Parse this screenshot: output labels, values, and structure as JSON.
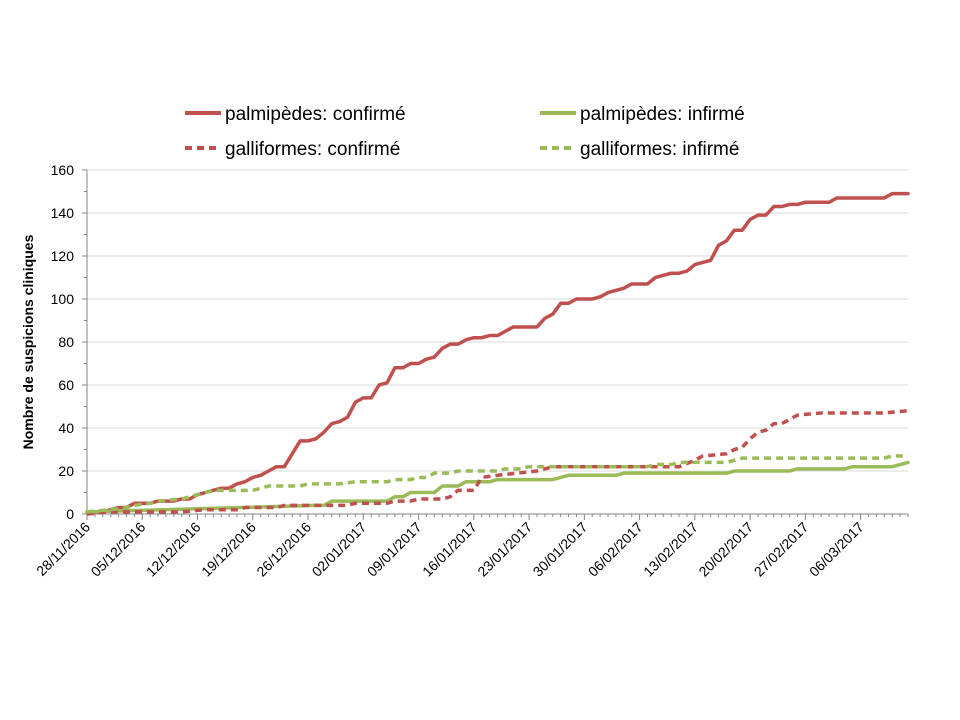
{
  "chart_data": {
    "type": "line",
    "title": "",
    "xlabel": "",
    "ylabel": "Nombre de suspicions cliniques",
    "ylim": [
      0,
      160
    ],
    "yticks": [
      "0",
      "20",
      "40",
      "60",
      "80",
      "100",
      "120",
      "140",
      "160"
    ],
    "xlim": [
      "2016-11-28",
      "2017-03-12"
    ],
    "x_tick_labels": [
      "28/11/2016",
      "05/12/2016",
      "12/12/2016",
      "19/12/2016",
      "26/12/2016",
      "02/01/2017",
      "09/01/2017",
      "16/01/2017",
      "23/01/2017",
      "30/01/2017",
      "06/02/2017",
      "13/02/2017",
      "20/02/2017",
      "27/02/2017",
      "06/03/2017"
    ],
    "grid": "horizontal major gridlines",
    "legend": "top, two columns",
    "series": [
      {
        "name": "palmipèdes: confirmé",
        "color": "#c0504d",
        "dash": "solid",
        "points": [
          [
            "2016-11-28",
            1
          ],
          [
            "2016-11-30",
            1
          ],
          [
            "2016-12-01",
            2
          ],
          [
            "2016-12-02",
            3
          ],
          [
            "2016-12-03",
            3
          ],
          [
            "2016-12-04",
            5
          ],
          [
            "2016-12-06",
            5
          ],
          [
            "2016-12-07",
            6
          ],
          [
            "2016-12-09",
            6
          ],
          [
            "2016-12-10",
            7
          ],
          [
            "2016-12-11",
            7
          ],
          [
            "2016-12-12",
            9
          ],
          [
            "2016-12-14",
            11
          ],
          [
            "2016-12-15",
            12
          ],
          [
            "2016-12-16",
            12
          ],
          [
            "2016-12-17",
            14
          ],
          [
            "2016-12-18",
            15
          ],
          [
            "2016-12-19",
            17
          ],
          [
            "2016-12-20",
            18
          ],
          [
            "2016-12-21",
            20
          ],
          [
            "2016-12-22",
            22
          ],
          [
            "2016-12-23",
            22
          ],
          [
            "2016-12-25",
            34
          ],
          [
            "2016-12-26",
            34
          ],
          [
            "2016-12-27",
            35
          ],
          [
            "2016-12-28",
            38
          ],
          [
            "2016-12-29",
            42
          ],
          [
            "2016-12-30",
            43
          ],
          [
            "2016-12-31",
            45
          ],
          [
            "2017-01-01",
            52
          ],
          [
            "2017-01-02",
            54
          ],
          [
            "2017-01-03",
            54
          ],
          [
            "2017-01-04",
            60
          ],
          [
            "2017-01-05",
            61
          ],
          [
            "2017-01-06",
            68
          ],
          [
            "2017-01-07",
            68
          ],
          [
            "2017-01-08",
            70
          ],
          [
            "2017-01-09",
            70
          ],
          [
            "2017-01-10",
            72
          ],
          [
            "2017-01-11",
            73
          ],
          [
            "2017-01-12",
            77
          ],
          [
            "2017-01-13",
            79
          ],
          [
            "2017-01-14",
            79
          ],
          [
            "2017-01-15",
            81
          ],
          [
            "2017-01-16",
            82
          ],
          [
            "2017-01-17",
            82
          ],
          [
            "2017-01-18",
            83
          ],
          [
            "2017-01-19",
            83
          ],
          [
            "2017-01-20",
            85
          ],
          [
            "2017-01-21",
            87
          ],
          [
            "2017-01-22",
            87
          ],
          [
            "2017-01-24",
            87
          ],
          [
            "2017-01-25",
            91
          ],
          [
            "2017-01-26",
            93
          ],
          [
            "2017-01-27",
            98
          ],
          [
            "2017-01-28",
            98
          ],
          [
            "2017-01-29",
            100
          ],
          [
            "2017-01-31",
            100
          ],
          [
            "2017-02-01",
            101
          ],
          [
            "2017-02-02",
            103
          ],
          [
            "2017-02-03",
            104
          ],
          [
            "2017-02-04",
            105
          ],
          [
            "2017-02-05",
            107
          ],
          [
            "2017-02-07",
            107
          ],
          [
            "2017-02-08",
            110
          ],
          [
            "2017-02-09",
            111
          ],
          [
            "2017-02-10",
            112
          ],
          [
            "2017-02-11",
            112
          ],
          [
            "2017-02-12",
            113
          ],
          [
            "2017-02-13",
            116
          ],
          [
            "2017-02-14",
            117
          ],
          [
            "2017-02-15",
            118
          ],
          [
            "2017-02-16",
            125
          ],
          [
            "2017-02-17",
            127
          ],
          [
            "2017-02-18",
            132
          ],
          [
            "2017-02-19",
            132
          ],
          [
            "2017-02-20",
            137
          ],
          [
            "2017-02-21",
            139
          ],
          [
            "2017-02-22",
            139
          ],
          [
            "2017-02-23",
            143
          ],
          [
            "2017-02-24",
            143
          ],
          [
            "2017-02-25",
            144
          ],
          [
            "2017-02-26",
            144
          ],
          [
            "2017-02-27",
            145
          ],
          [
            "2017-03-02",
            145
          ],
          [
            "2017-03-03",
            147
          ],
          [
            "2017-03-09",
            147
          ],
          [
            "2017-03-10",
            149
          ],
          [
            "2017-03-12",
            149
          ]
        ]
      },
      {
        "name": "palmipèdes: infirmé",
        "color": "#9bbb59",
        "dash": "solid",
        "points": [
          [
            "2016-11-28",
            1
          ],
          [
            "2016-12-27",
            4
          ],
          [
            "2016-12-28",
            4
          ],
          [
            "2016-12-29",
            6
          ],
          [
            "2017-01-05",
            6
          ],
          [
            "2017-01-06",
            8
          ],
          [
            "2017-01-07",
            8
          ],
          [
            "2017-01-08",
            10
          ],
          [
            "2017-01-11",
            10
          ],
          [
            "2017-01-12",
            13
          ],
          [
            "2017-01-14",
            13
          ],
          [
            "2017-01-15",
            15
          ],
          [
            "2017-01-18",
            15
          ],
          [
            "2017-01-19",
            16
          ],
          [
            "2017-01-26",
            16
          ],
          [
            "2017-01-27",
            17
          ],
          [
            "2017-01-28",
            18
          ],
          [
            "2017-02-03",
            18
          ],
          [
            "2017-02-04",
            19
          ],
          [
            "2017-02-17",
            19
          ],
          [
            "2017-02-18",
            20
          ],
          [
            "2017-02-25",
            20
          ],
          [
            "2017-02-26",
            21
          ],
          [
            "2017-03-04",
            21
          ],
          [
            "2017-03-05",
            22
          ],
          [
            "2017-03-10",
            22
          ],
          [
            "2017-03-12",
            24
          ]
        ]
      },
      {
        "name": "galliformes: confirmé",
        "color": "#c0504d",
        "dash": "dashed",
        "points": [
          [
            "2016-11-28",
            0
          ],
          [
            "2016-12-01",
            1
          ],
          [
            "2016-12-10",
            1
          ],
          [
            "2016-12-13",
            2
          ],
          [
            "2016-12-17",
            2
          ],
          [
            "2016-12-18",
            3
          ],
          [
            "2016-12-22",
            3
          ],
          [
            "2016-12-23",
            4
          ],
          [
            "2016-12-31",
            4
          ],
          [
            "2017-01-01",
            5
          ],
          [
            "2017-01-05",
            5
          ],
          [
            "2017-01-06",
            6
          ],
          [
            "2017-01-08",
            6
          ],
          [
            "2017-01-09",
            7
          ],
          [
            "2017-01-12",
            7
          ],
          [
            "2017-01-13",
            8
          ],
          [
            "2017-01-14",
            11
          ],
          [
            "2017-01-16",
            11
          ],
          [
            "2017-01-17",
            17
          ],
          [
            "2017-01-19",
            18
          ],
          [
            "2017-01-24",
            20
          ],
          [
            "2017-01-26",
            22
          ],
          [
            "2017-02-11",
            22
          ],
          [
            "2017-02-13",
            25
          ],
          [
            "2017-02-14",
            27
          ],
          [
            "2017-02-17",
            28
          ],
          [
            "2017-02-18",
            30
          ],
          [
            "2017-02-19",
            31
          ],
          [
            "2017-02-20",
            35
          ],
          [
            "2017-02-21",
            38
          ],
          [
            "2017-02-22",
            39
          ],
          [
            "2017-02-23",
            42
          ],
          [
            "2017-02-24",
            42
          ],
          [
            "2017-02-25",
            44
          ],
          [
            "2017-02-26",
            46
          ],
          [
            "2017-03-01",
            47
          ],
          [
            "2017-03-09",
            47
          ],
          [
            "2017-03-12",
            48
          ]
        ]
      },
      {
        "name": "galliformes: infirmé",
        "color": "#9bbb59",
        "dash": "dashed",
        "points": [
          [
            "2016-11-28",
            1
          ],
          [
            "2016-12-01",
            2
          ],
          [
            "2016-12-03",
            3
          ],
          [
            "2016-12-04",
            4
          ],
          [
            "2016-12-06",
            5
          ],
          [
            "2016-12-07",
            6
          ],
          [
            "2016-12-10",
            7
          ],
          [
            "2016-12-11",
            8
          ],
          [
            "2016-12-12",
            9
          ],
          [
            "2016-12-13",
            10
          ],
          [
            "2016-12-14",
            11
          ],
          [
            "2016-12-19",
            11
          ],
          [
            "2016-12-21",
            13
          ],
          [
            "2016-12-25",
            13
          ],
          [
            "2016-12-26",
            14
          ],
          [
            "2016-12-30",
            14
          ],
          [
            "2017-01-01",
            15
          ],
          [
            "2017-01-05",
            15
          ],
          [
            "2017-01-06",
            16
          ],
          [
            "2017-01-08",
            16
          ],
          [
            "2017-01-09",
            17
          ],
          [
            "2017-01-10",
            17
          ],
          [
            "2017-01-11",
            19
          ],
          [
            "2017-01-13",
            19
          ],
          [
            "2017-01-14",
            20
          ],
          [
            "2017-01-19",
            20
          ],
          [
            "2017-01-20",
            21
          ],
          [
            "2017-01-22",
            21
          ],
          [
            "2017-01-23",
            22
          ],
          [
            "2017-02-07",
            22
          ],
          [
            "2017-02-08",
            23
          ],
          [
            "2017-02-10",
            23
          ],
          [
            "2017-02-11",
            24
          ],
          [
            "2017-02-17",
            24
          ],
          [
            "2017-02-18",
            25
          ],
          [
            "2017-02-19",
            26
          ],
          [
            "2017-03-09",
            26
          ],
          [
            "2017-03-10",
            27
          ],
          [
            "2017-03-12",
            27
          ]
        ]
      }
    ]
  }
}
